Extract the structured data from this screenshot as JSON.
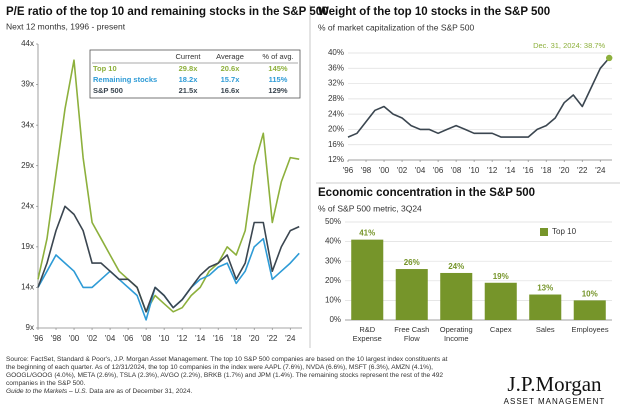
{
  "chart_data": [
    {
      "type": "line",
      "title": "P/E ratio of the top 10 and remaining stocks in the S&P 500",
      "subtitle": "Next 12 months, 1996 - present",
      "x": [
        1996,
        1997,
        1998,
        1999,
        2000,
        2001,
        2002,
        2003,
        2004,
        2005,
        2006,
        2007,
        2008,
        2009,
        2010,
        2011,
        2012,
        2013,
        2014,
        2015,
        2016,
        2017,
        2018,
        2019,
        2020,
        2021,
        2022,
        2023,
        2024,
        2024.99
      ],
      "series": [
        {
          "name": "Top 10",
          "color": "#8db03c",
          "values": [
            15,
            20,
            28,
            36,
            42,
            30,
            22,
            20,
            18,
            16,
            15,
            14,
            11,
            13,
            12,
            11,
            11.5,
            13,
            14,
            16,
            17,
            19,
            18,
            21,
            29,
            33,
            22,
            27,
            30,
            29.8
          ]
        },
        {
          "name": "Remaining stocks",
          "color": "#2e9bd6",
          "values": [
            14,
            16,
            18,
            17,
            16,
            14,
            14,
            15,
            16,
            15,
            14,
            13,
            10,
            14,
            13,
            11.5,
            12.5,
            14,
            15,
            15.5,
            16.5,
            17,
            14.5,
            16,
            19,
            20,
            15,
            16,
            17,
            18.2
          ]
        },
        {
          "name": "S&P 500",
          "color": "#3b4650",
          "values": [
            14,
            17,
            21,
            24,
            23,
            21,
            17,
            17,
            16,
            15,
            15,
            14,
            11,
            14,
            13,
            11.5,
            12.5,
            14,
            15.5,
            16.5,
            17,
            18,
            15,
            17,
            22,
            22,
            16,
            19,
            21,
            21.5
          ]
        }
      ],
      "xlim": [
        1996,
        2025.3
      ],
      "xticks": [
        {
          "value": 1996,
          "label": "'96"
        },
        {
          "value": 1998,
          "label": "'98"
        },
        {
          "value": 2000,
          "label": "'00"
        },
        {
          "value": 2002,
          "label": "'02"
        },
        {
          "value": 2004,
          "label": "'04"
        },
        {
          "value": 2006,
          "label": "'06"
        },
        {
          "value": 2008,
          "label": "'08"
        },
        {
          "value": 2010,
          "label": "'10"
        },
        {
          "value": 2012,
          "label": "'12"
        },
        {
          "value": 2014,
          "label": "'14"
        },
        {
          "value": 2016,
          "label": "'16"
        },
        {
          "value": 2018,
          "label": "'18"
        },
        {
          "value": 2020,
          "label": "'20"
        },
        {
          "value": 2022,
          "label": "'22"
        },
        {
          "value": 2024,
          "label": "'24"
        }
      ],
      "ylim": [
        9,
        44
      ],
      "yticks": [
        {
          "value": 9,
          "label": "9x"
        },
        {
          "value": 14,
          "label": "14x"
        },
        {
          "value": 19,
          "label": "19x"
        },
        {
          "value": 24,
          "label": "24x"
        },
        {
          "value": 29,
          "label": "29x"
        },
        {
          "value": 34,
          "label": "34x"
        },
        {
          "value": 39,
          "label": "39x"
        },
        {
          "value": 44,
          "label": "44x"
        }
      ],
      "grid": false,
      "table": {
        "columns": [
          "Current",
          "Average",
          "% of avg."
        ],
        "rows": [
          [
            "Top 10",
            "29.8x",
            "20.6x",
            "145%"
          ],
          [
            "Remaining stocks",
            "18.2x",
            "15.7x",
            "115%"
          ],
          [
            "S&P 500",
            "21.5x",
            "16.6x",
            "129%"
          ]
        ]
      }
    },
    {
      "type": "line",
      "title": "Weight of the top 10 stocks in the S&P 500",
      "subtitle": "% of market capitalization of the S&P 500",
      "x": [
        1996,
        1997,
        1998,
        1999,
        2000,
        2001,
        2002,
        2003,
        2004,
        2005,
        2006,
        2007,
        2008,
        2009,
        2010,
        2011,
        2012,
        2013,
        2014,
        2015,
        2016,
        2017,
        2018,
        2019,
        2020,
        2021,
        2022,
        2023,
        2024,
        2024.99
      ],
      "series": [
        {
          "name": "Weight",
          "color": "#3b4650",
          "values": [
            18,
            19,
            22,
            25,
            26,
            24,
            23,
            21,
            20,
            20,
            19,
            20,
            21,
            20,
            19,
            19,
            19,
            18,
            18,
            18,
            18,
            20,
            21,
            23,
            27,
            29,
            26,
            31,
            36,
            38.7
          ]
        }
      ],
      "annotation": "Dec. 31, 2024: 38.7%",
      "marker_color": "#8db03c",
      "xlim": [
        1996,
        2025.3
      ],
      "xticks": [
        {
          "value": 1996,
          "label": "'96"
        },
        {
          "value": 1998,
          "label": "'98"
        },
        {
          "value": 2000,
          "label": "'00"
        },
        {
          "value": 2002,
          "label": "'02"
        },
        {
          "value": 2004,
          "label": "'04"
        },
        {
          "value": 2006,
          "label": "'06"
        },
        {
          "value": 2008,
          "label": "'08"
        },
        {
          "value": 2010,
          "label": "'10"
        },
        {
          "value": 2012,
          "label": "'12"
        },
        {
          "value": 2014,
          "label": "'14"
        },
        {
          "value": 2016,
          "label": "'16"
        },
        {
          "value": 2018,
          "label": "'18"
        },
        {
          "value": 2020,
          "label": "'20"
        },
        {
          "value": 2022,
          "label": "'22"
        },
        {
          "value": 2024,
          "label": "'24"
        }
      ],
      "ylim": [
        12,
        40
      ],
      "yticks": [
        {
          "value": 12,
          "label": "12%"
        },
        {
          "value": 16,
          "label": "16%"
        },
        {
          "value": 20,
          "label": "20%"
        },
        {
          "value": 24,
          "label": "24%"
        },
        {
          "value": 28,
          "label": "28%"
        },
        {
          "value": 32,
          "label": "32%"
        },
        {
          "value": 36,
          "label": "36%"
        },
        {
          "value": 40,
          "label": "40%"
        }
      ],
      "grid": true
    },
    {
      "type": "bar",
      "title": "Economic concentration in the S&P 500",
      "subtitle": "% of S&P 500 metric, 3Q24",
      "categories": [
        "R&D Expense",
        "Free Cash Flow",
        "Operating Income",
        "Capex",
        "Sales",
        "Employees"
      ],
      "series": [
        {
          "name": "Top 10",
          "color": "#76952a",
          "values": [
            41,
            26,
            24,
            19,
            13,
            10
          ],
          "value_labels": [
            "41%",
            "26%",
            "24%",
            "19%",
            "13%",
            "10%"
          ]
        }
      ],
      "ylim": [
        0,
        50
      ],
      "yticks": [
        {
          "value": 0,
          "label": "0%"
        },
        {
          "value": 10,
          "label": "10%"
        },
        {
          "value": 20,
          "label": "20%"
        },
        {
          "value": 30,
          "label": "30%"
        },
        {
          "value": 40,
          "label": "40%"
        },
        {
          "value": 50,
          "label": "50%"
        }
      ],
      "grid": true,
      "legend": "upper right"
    }
  ],
  "footer": {
    "source": "Source: FactSet, Standard & Poor's, J.P. Morgan Asset Management. The top 10 S&P 500 companies are based on the 10 largest index constituents at the beginning of each quarter. As of 12/31/2024, the top 10 companies in the index were AAPL (7.6%), NVDA (6.6%), MSFT (6.3%), AMZN (4.1%), GOOGL/GOOG (4.0%), META (2.6%), TSLA (2.3%), AVGO (2.2%), BRKB (1.7%) and JPM (1.4%). The remaining stocks represent the rest of the 492 companies in the S&P 500.",
    "guide": "Guide to the Markets – U.S.",
    "note": " Data are as of December 31, 2024."
  },
  "logo": {
    "name": "J.P.Morgan",
    "subtitle": "ASSET MANAGEMENT"
  }
}
